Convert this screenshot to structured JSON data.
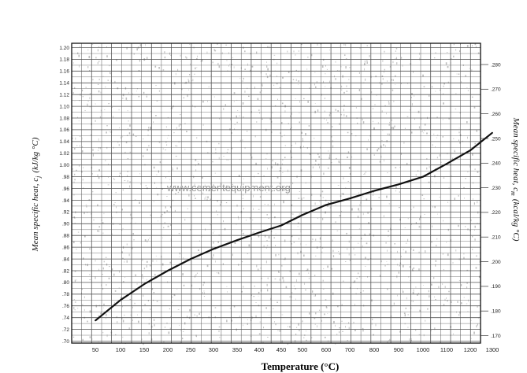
{
  "chart_data": {
    "type": "line",
    "xlabel": "Temperature (°C)",
    "ylabel_left": "Mean specific heat, c",
    "ylabel_left_sub": "j",
    "ylabel_left_unit": "(kJ/kg °C)",
    "ylabel_right": "Mean specific heat, c",
    "ylabel_right_sub": "m",
    "ylabel_right_unit": "(kcal/kg °C)",
    "x_ticks": [
      "50",
      "100",
      "150",
      "200",
      "250",
      "300",
      "350",
      "400",
      "450",
      "500",
      "600",
      "700",
      "800",
      "900",
      "1000",
      "1100",
      "1200",
      "1300"
    ],
    "y_left_ticks": [
      "1.20",
      "1.18",
      "1.16",
      "1.14",
      "1.12",
      "1.10",
      "1.08",
      "1.06",
      "1.04",
      "1.02",
      "1.00",
      ".98",
      ".96",
      ".94",
      ".92",
      ".90",
      ".88",
      ".86",
      ".84",
      ".82",
      ".80",
      ".78",
      ".76",
      ".74",
      ".72",
      ".70"
    ],
    "y_right_ticks": [
      ".280",
      ".270",
      ".260",
      ".250",
      ".240",
      ".230",
      ".220",
      ".210",
      ".200",
      ".190",
      ".180",
      ".170"
    ],
    "ylim_left": [
      0.7,
      1.2
    ],
    "grid": true,
    "series": [
      {
        "x": [
          50,
          100,
          150,
          200,
          250,
          300,
          350,
          400,
          450,
          500,
          600,
          700,
          800,
          900,
          1000,
          1100,
          1200,
          1300
        ],
        "y": [
          0.735,
          0.77,
          0.797,
          0.82,
          0.84,
          0.857,
          0.872,
          0.885,
          0.897,
          0.915,
          0.932,
          0.943,
          0.956,
          0.967,
          0.98,
          1.002,
          1.025,
          1.055
        ]
      }
    ],
    "watermark": "www.cementequipment.org"
  }
}
